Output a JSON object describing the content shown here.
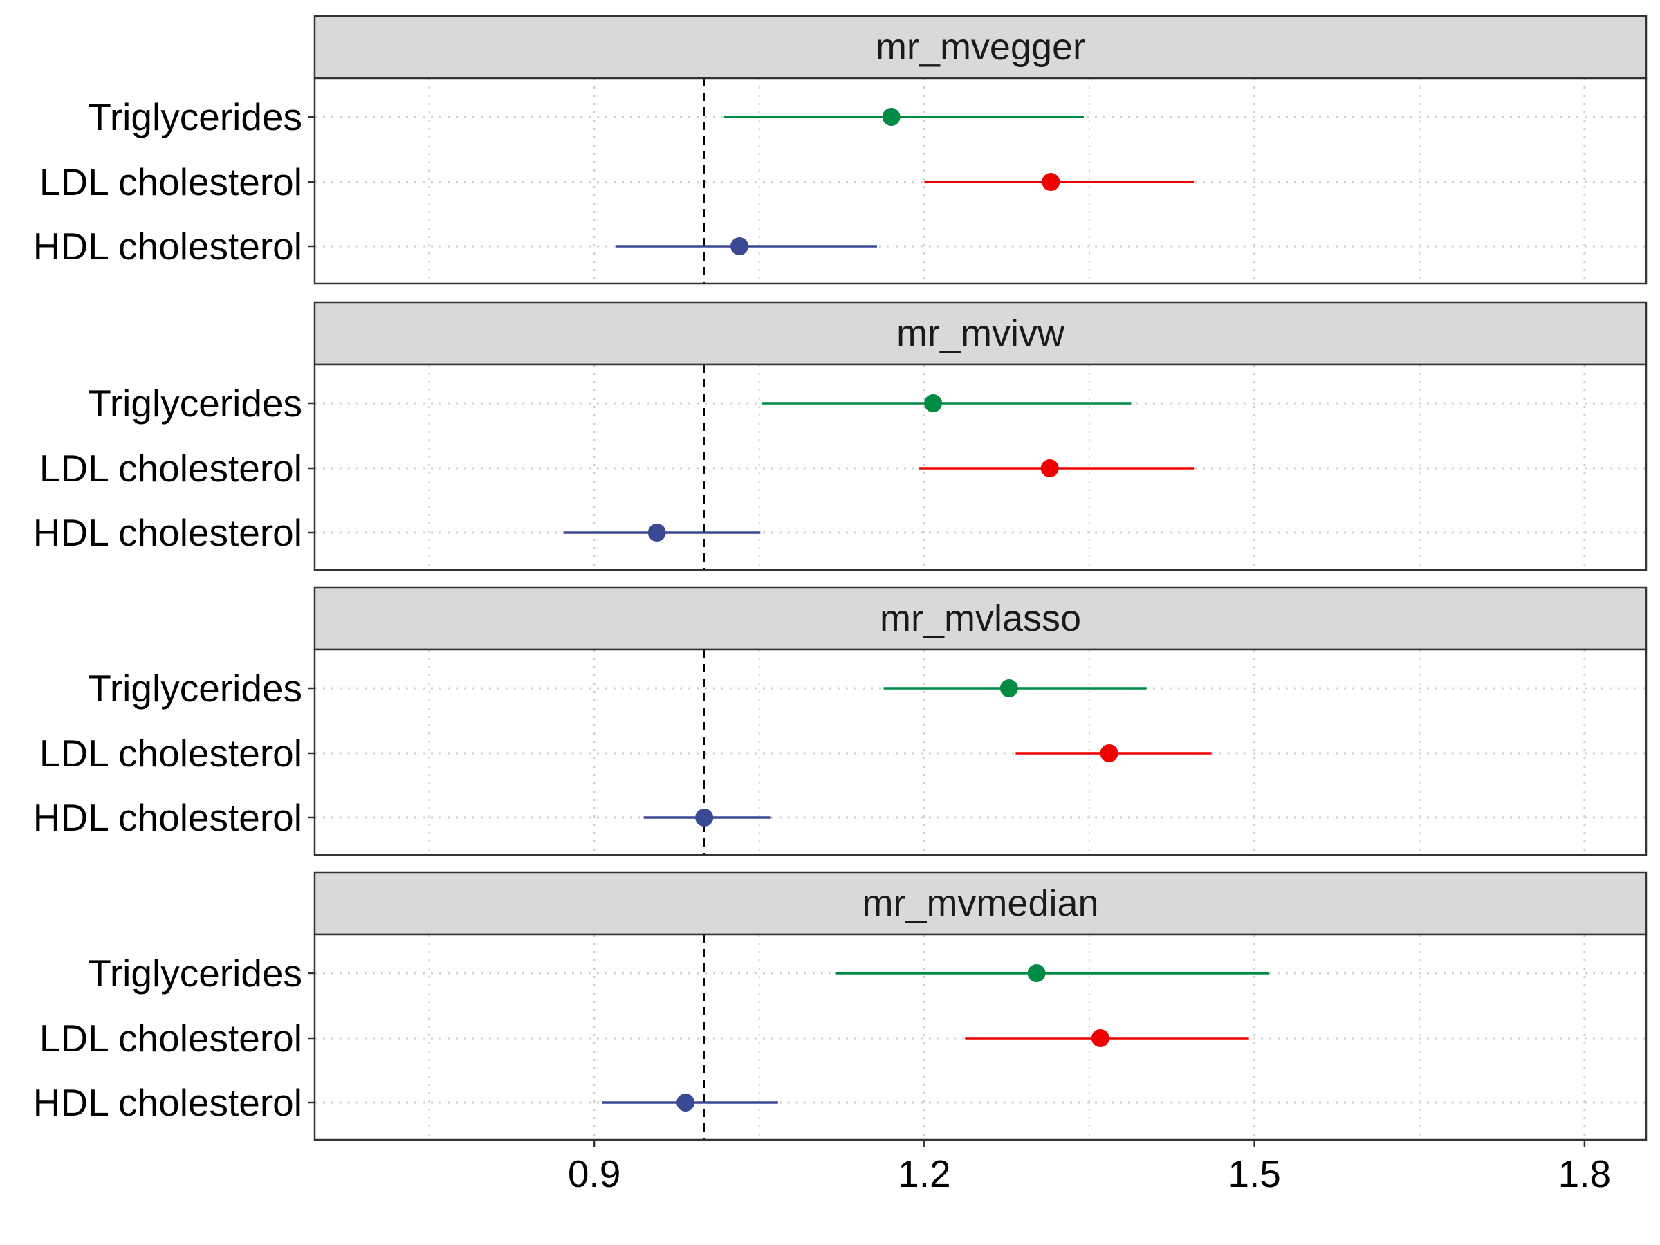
{
  "chart_data": {
    "type": "forest",
    "xlim": [
      0.646,
      1.856
    ],
    "x_ticks": [
      0.9,
      1.2,
      1.5,
      1.8
    ],
    "x_tick_labels": [
      "0.9",
      "1.2",
      "1.5",
      "1.8"
    ],
    "minor_ticks": [
      0.75,
      1.05,
      1.35,
      1.65
    ],
    "reference_line": 1.0,
    "categories": [
      "Triglycerides",
      "LDL cholesterol",
      "HDL cholesterol"
    ],
    "colors": {
      "Triglycerides": "#008B45",
      "LDL cholesterol": "#EE0000",
      "HDL cholesterol": "#3B4992"
    },
    "panels": [
      {
        "title": "mr_mvegger",
        "estimates": [
          {
            "label": "Triglycerides",
            "value": 1.17,
            "lower": 1.018,
            "upper": 1.345
          },
          {
            "label": "LDL cholesterol",
            "value": 1.315,
            "lower": 1.2,
            "upper": 1.445
          },
          {
            "label": "HDL cholesterol",
            "value": 1.032,
            "lower": 0.92,
            "upper": 1.157
          }
        ]
      },
      {
        "title": "mr_mvivw",
        "estimates": [
          {
            "label": "Triglycerides",
            "value": 1.208,
            "lower": 1.052,
            "upper": 1.388
          },
          {
            "label": "LDL cholesterol",
            "value": 1.314,
            "lower": 1.195,
            "upper": 1.445
          },
          {
            "label": "HDL cholesterol",
            "value": 0.957,
            "lower": 0.872,
            "upper": 1.051
          }
        ]
      },
      {
        "title": "mr_mvlasso",
        "estimates": [
          {
            "label": "Triglycerides",
            "value": 1.277,
            "lower": 1.163,
            "upper": 1.402
          },
          {
            "label": "LDL cholesterol",
            "value": 1.368,
            "lower": 1.283,
            "upper": 1.461
          },
          {
            "label": "HDL cholesterol",
            "value": 1.0,
            "lower": 0.945,
            "upper": 1.06
          }
        ]
      },
      {
        "title": "mr_mvmedian",
        "estimates": [
          {
            "label": "Triglycerides",
            "value": 1.302,
            "lower": 1.119,
            "upper": 1.513
          },
          {
            "label": "LDL cholesterol",
            "value": 1.36,
            "lower": 1.237,
            "upper": 1.495
          },
          {
            "label": "HDL cholesterol",
            "value": 0.983,
            "lower": 0.907,
            "upper": 1.067
          }
        ]
      }
    ]
  }
}
